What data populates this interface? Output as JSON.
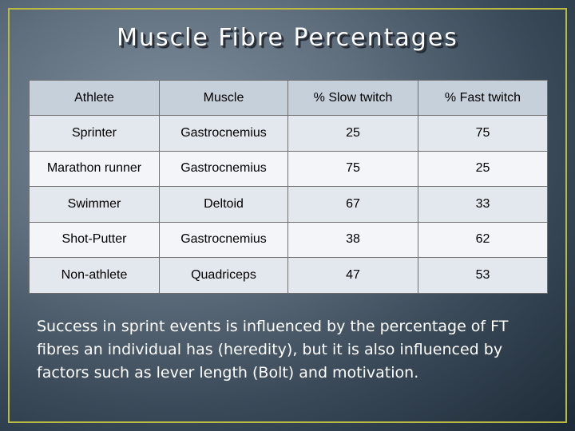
{
  "slide": {
    "title": "Muscle Fibre Percentages",
    "body": "Success in sprint events is influenced by the percentage of FT fibres an individual has (heredity), but it is also influenced by factors such as lever length (Bolt) and motivation."
  },
  "table": {
    "headers": [
      "Athlete",
      "Muscle",
      "% Slow twitch",
      "% Fast twitch"
    ],
    "rows": [
      [
        "Sprinter",
        "Gastrocnemius",
        "25",
        "75"
      ],
      [
        "Marathon runner",
        "Gastrocnemius",
        "75",
        "25"
      ],
      [
        "Swimmer",
        "Deltoid",
        "67",
        "33"
      ],
      [
        "Shot-Putter",
        "Gastrocnemius",
        "38",
        "62"
      ],
      [
        "Non-athlete",
        "Quadriceps",
        "47",
        "53"
      ]
    ]
  },
  "colors": {
    "frame_border": "#b9b944",
    "header_fill": "#c6d0db",
    "row_fill_a": "#e3e7ee",
    "row_fill_b": "#f4f5f8",
    "text_light": "#ffffff"
  }
}
